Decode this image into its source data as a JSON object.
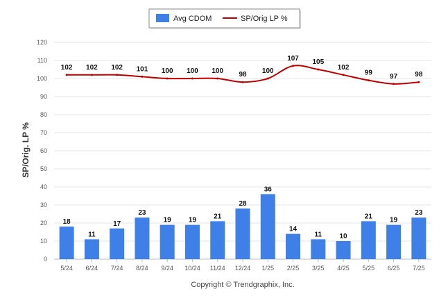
{
  "chart_data": {
    "type": "bar",
    "categories": [
      "5/24",
      "6/24",
      "7/24",
      "8/24",
      "9/24",
      "10/24",
      "11/24",
      "12/24",
      "1/25",
      "2/25",
      "3/25",
      "4/25",
      "5/25",
      "6/25",
      "7/25"
    ],
    "series": [
      {
        "name": "Avg CDOM",
        "type": "bar",
        "color": "#3f7fe8",
        "values": [
          18,
          11,
          17,
          23,
          19,
          19,
          21,
          28,
          36,
          14,
          11,
          10,
          21,
          19,
          23
        ]
      },
      {
        "name": "SP/Orig LP %",
        "type": "line",
        "color": "#c00000",
        "values": [
          102,
          102,
          102,
          101,
          100,
          100,
          100,
          98,
          100,
          107,
          105,
          102,
          99,
          97,
          98
        ]
      }
    ],
    "ylabel": "SP/Orig. LP %",
    "ylim": [
      0,
      120
    ],
    "yticks": [
      "0",
      "10",
      "20",
      "30",
      "40",
      "50",
      "60",
      "70",
      "80",
      "90",
      "100",
      "110",
      "120"
    ],
    "grid": true,
    "legend_position": "top-center",
    "footer": "Copyright © Trendgraphix, Inc."
  }
}
